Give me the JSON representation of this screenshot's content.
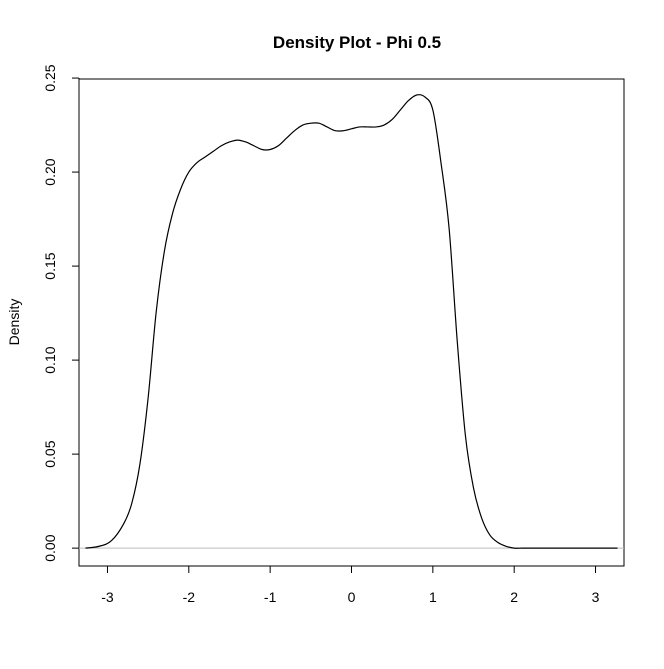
{
  "chart_data": {
    "type": "line",
    "title": "Density Plot - Phi 0.5",
    "xlabel": "",
    "ylabel": "Density",
    "xlim": [
      -3.35,
      3.35
    ],
    "ylim": [
      -0.0095,
      0.2495
    ],
    "x_ticks": [
      -3,
      -2,
      -1,
      0,
      1,
      2,
      3
    ],
    "x_tick_labels": [
      "-3",
      "-2",
      "-1",
      "0",
      "1",
      "2",
      "3"
    ],
    "y_ticks": [
      0.0,
      0.05,
      0.1,
      0.15,
      0.2,
      0.25
    ],
    "y_tick_labels": [
      "0.00",
      "0.05",
      "0.10",
      "0.15",
      "0.20",
      "0.25"
    ],
    "grid": false,
    "legend": "none",
    "baseline": 0,
    "colors": {
      "line": "#000000",
      "baseline": "#bebebe",
      "frame": "#000000"
    },
    "series": [
      {
        "x": [
          -3.27,
          -3.1,
          -2.95,
          -2.8,
          -2.7,
          -2.6,
          -2.5,
          -2.4,
          -2.3,
          -2.2,
          -2.1,
          -2.0,
          -1.9,
          -1.8,
          -1.7,
          -1.6,
          -1.5,
          -1.4,
          -1.3,
          -1.2,
          -1.1,
          -1.0,
          -0.9,
          -0.8,
          -0.7,
          -0.6,
          -0.5,
          -0.4,
          -0.3,
          -0.2,
          -0.1,
          0.0,
          0.1,
          0.2,
          0.3,
          0.4,
          0.5,
          0.6,
          0.7,
          0.8,
          0.9,
          1.0,
          1.1,
          1.2,
          1.3,
          1.4,
          1.5,
          1.6,
          1.7,
          1.8,
          1.9,
          2.0,
          2.1,
          2.2,
          2.3,
          2.4,
          2.5,
          2.6,
          2.7,
          2.8,
          2.95,
          3.1,
          3.27
        ],
        "y": [
          0.0,
          0.001,
          0.004,
          0.013,
          0.024,
          0.045,
          0.08,
          0.126,
          0.158,
          0.178,
          0.191,
          0.2,
          0.205,
          0.208,
          0.211,
          0.214,
          0.216,
          0.217,
          0.216,
          0.214,
          0.212,
          0.212,
          0.214,
          0.218,
          0.222,
          0.225,
          0.226,
          0.226,
          0.224,
          0.222,
          0.222,
          0.223,
          0.224,
          0.224,
          0.224,
          0.225,
          0.228,
          0.233,
          0.238,
          0.241,
          0.24,
          0.233,
          0.205,
          0.17,
          0.11,
          0.06,
          0.032,
          0.016,
          0.007,
          0.003,
          0.001,
          0.0,
          0.0,
          0.0,
          0.0,
          0.0,
          0.0,
          0.0,
          0.0,
          0.0,
          0.0,
          0.0,
          0.0
        ]
      }
    ]
  }
}
